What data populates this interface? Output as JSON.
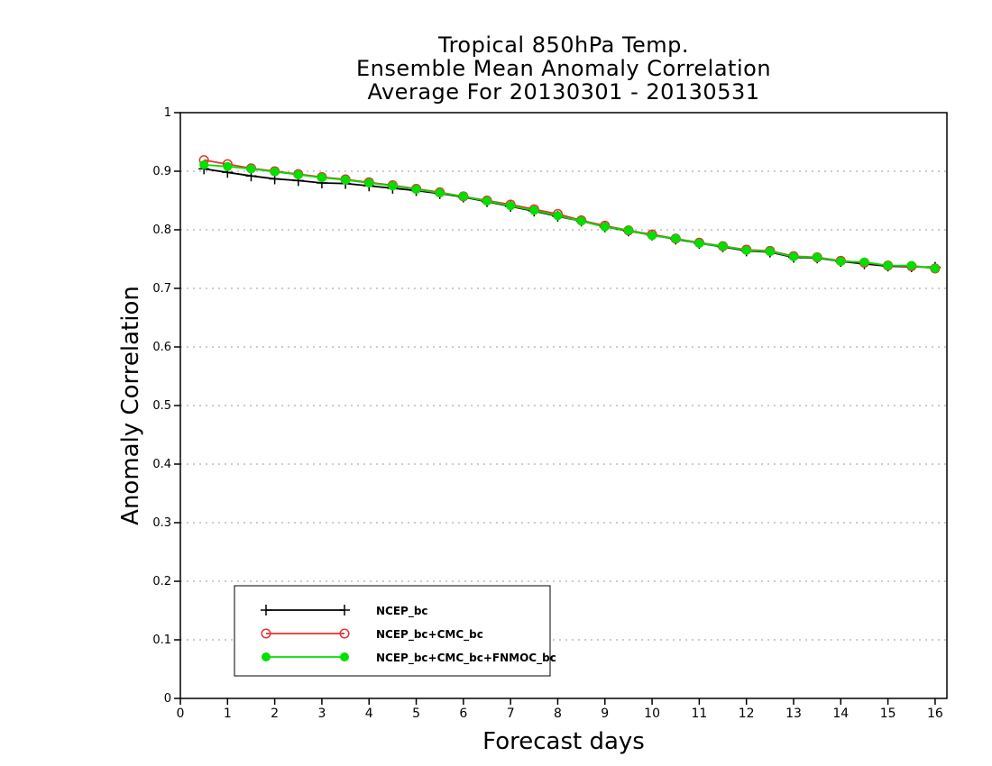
{
  "chart_data": {
    "type": "line",
    "title": [
      "Tropical 850hPa Temp.",
      "Ensemble Mean Anomaly Correlation",
      "Average For 20130301 - 20130531"
    ],
    "xlabel": "Forecast days",
    "ylabel": "Anomaly Correlation",
    "xlim": [
      0,
      16.25
    ],
    "ylim": [
      0,
      1
    ],
    "x_ticks": [
      "0",
      "1",
      "2",
      "3",
      "4",
      "5",
      "6",
      "7",
      "8",
      "9",
      "10",
      "11",
      "12",
      "13",
      "14",
      "15",
      "16"
    ],
    "y_ticks": [
      "0",
      "0.1",
      "0.2",
      "0.3",
      "0.4",
      "0.5",
      "0.6",
      "0.7",
      "0.8",
      "0.9",
      "1"
    ],
    "grid": true,
    "legend_position": "bottom-left",
    "x": [
      0.5,
      1,
      1.5,
      2,
      2.5,
      3,
      3.5,
      4,
      4.5,
      5,
      5.5,
      6,
      6.5,
      7,
      7.5,
      8,
      8.5,
      9,
      9.5,
      10,
      10.5,
      11,
      11.5,
      12,
      12.5,
      13,
      13.5,
      14,
      14.5,
      15,
      15.5,
      16
    ],
    "series": [
      {
        "name": "NCEP_bc",
        "color": "#000000",
        "marker": "plus",
        "values": [
          0.904,
          0.898,
          0.892,
          0.887,
          0.884,
          0.88,
          0.879,
          0.875,
          0.871,
          0.867,
          0.862,
          0.856,
          0.848,
          0.84,
          0.832,
          0.823,
          0.815,
          0.805,
          0.798,
          0.791,
          0.784,
          0.777,
          0.771,
          0.764,
          0.762,
          0.753,
          0.752,
          0.746,
          0.742,
          0.738,
          0.737,
          0.736
        ]
      },
      {
        "name": "NCEP_bc+CMC_bc",
        "color": "#e83030",
        "marker": "open-circle",
        "values": [
          0.919,
          0.912,
          0.905,
          0.9,
          0.895,
          0.89,
          0.886,
          0.881,
          0.876,
          0.87,
          0.864,
          0.857,
          0.85,
          0.843,
          0.835,
          0.827,
          0.816,
          0.807,
          0.799,
          0.792,
          0.785,
          0.778,
          0.772,
          0.766,
          0.764,
          0.755,
          0.753,
          0.747,
          0.744,
          0.739,
          0.738,
          0.734
        ]
      },
      {
        "name": "NCEP_bc+CMC_bc+FNMOC_bc",
        "color": "#00e000",
        "marker": "filled-circle",
        "values": [
          0.911,
          0.908,
          0.904,
          0.899,
          0.894,
          0.889,
          0.885,
          0.88,
          0.875,
          0.869,
          0.863,
          0.857,
          0.849,
          0.841,
          0.833,
          0.824,
          0.815,
          0.805,
          0.799,
          0.79,
          0.785,
          0.777,
          0.772,
          0.765,
          0.763,
          0.754,
          0.753,
          0.746,
          0.745,
          0.739,
          0.739,
          0.734
        ]
      }
    ]
  }
}
